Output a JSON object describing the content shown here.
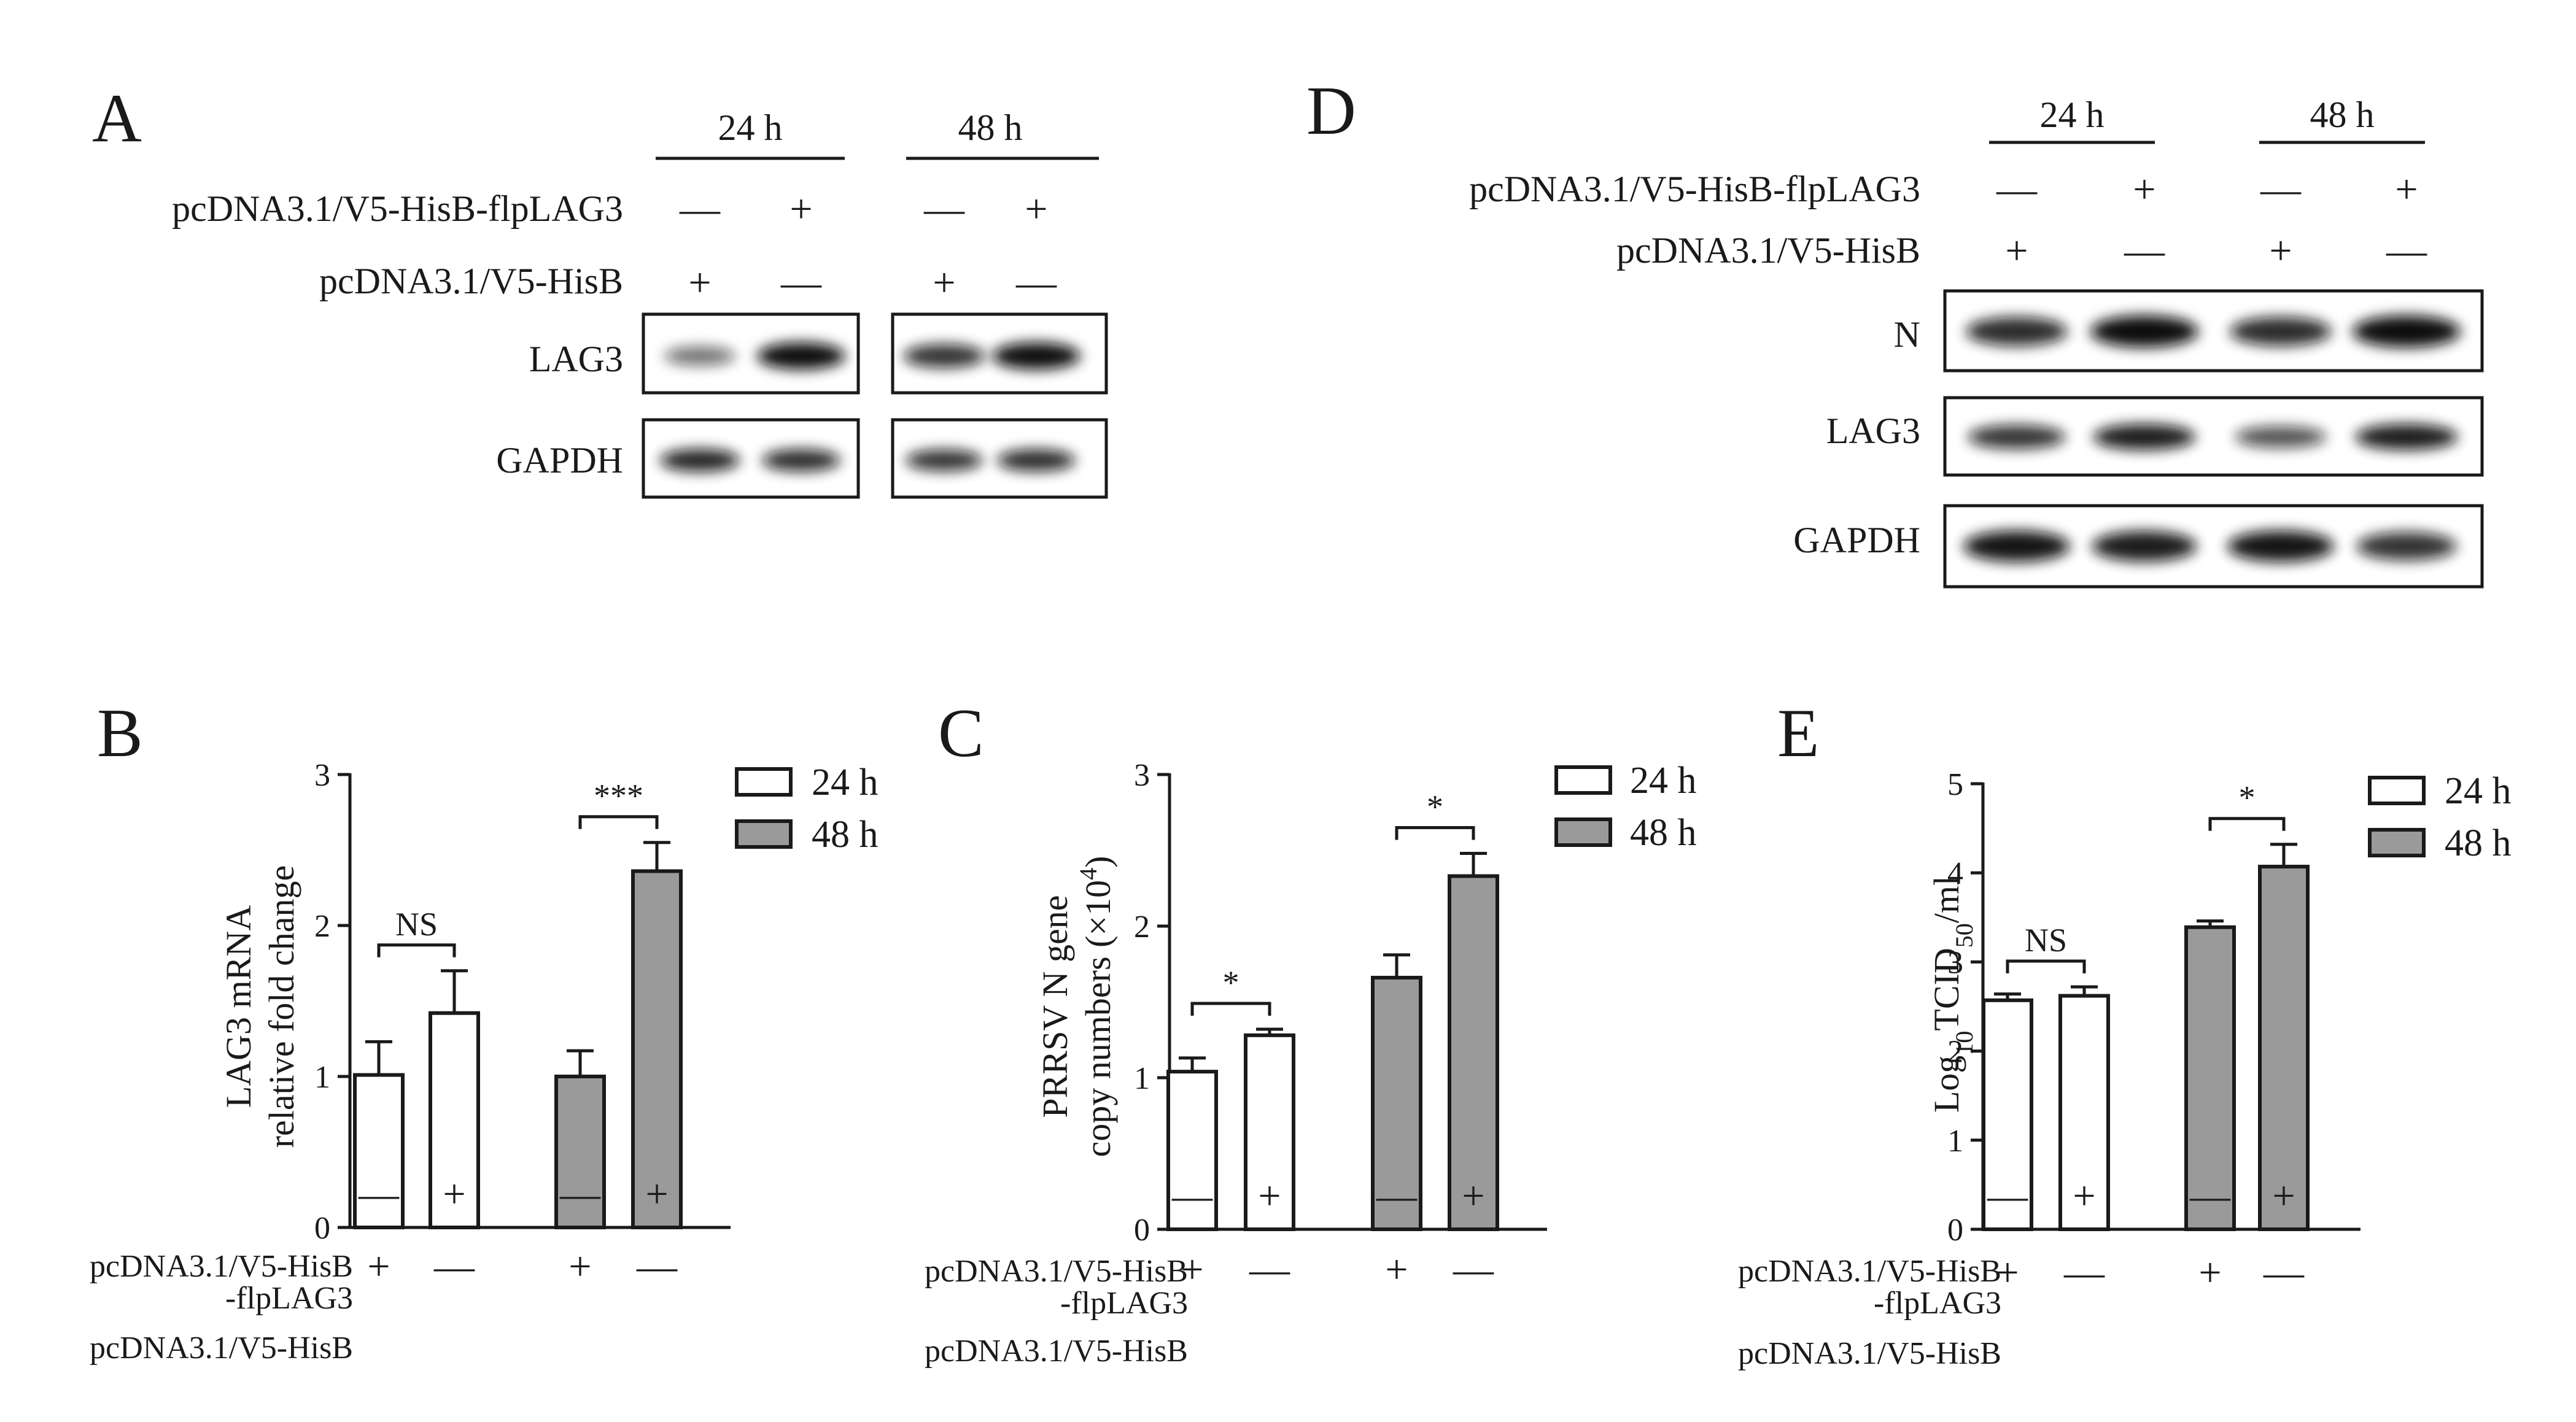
{
  "colors": {
    "bar_24h": "#ffffff",
    "bar_48h": "#9a9a9a",
    "ink": "#1a1a1a",
    "band": "#111111"
  },
  "panel_A": {
    "letter": "A",
    "timepoints": [
      "24 h",
      "48 h"
    ],
    "rows": [
      {
        "label": "pcDNA3.1/V5-HisB-flpLAG3",
        "signs": [
          "—",
          "+",
          "—",
          "+"
        ]
      },
      {
        "label": "pcDNA3.1/V5-HisB",
        "signs": [
          "+",
          "—",
          "+",
          "—"
        ]
      }
    ],
    "blots": [
      {
        "label": "LAG3",
        "intensity": [
          0.35,
          1.0,
          0.75,
          1.0
        ]
      },
      {
        "label": "GAPDH",
        "intensity": [
          0.85,
          0.8,
          0.75,
          0.8
        ]
      }
    ]
  },
  "panel_D": {
    "letter": "D",
    "timepoints": [
      "24 h",
      "48 h"
    ],
    "rows": [
      {
        "label": "pcDNA3.1/V5-HisB-flpLAG3",
        "signs": [
          "—",
          "+",
          "—",
          "+"
        ]
      },
      {
        "label": "pcDNA3.1/V5-HisB",
        "signs": [
          "+",
          "—",
          "+",
          "—"
        ]
      }
    ],
    "blots": [
      {
        "label": "N",
        "intensity": [
          0.8,
          1.0,
          0.8,
          1.0
        ]
      },
      {
        "label": "LAG3",
        "intensity": [
          0.75,
          0.9,
          0.55,
          0.9
        ]
      },
      {
        "label": "GAPDH",
        "intensity": [
          0.95,
          0.9,
          0.95,
          0.75
        ]
      }
    ]
  },
  "chart_data": [
    {
      "panel": "B",
      "type": "bar",
      "ylabel_lines": [
        "LAG3 mRNA",
        "relative fold change"
      ],
      "ylim": [
        0,
        3
      ],
      "yticks": [
        "0",
        "1",
        "2",
        "3"
      ],
      "legend": [
        "24 h",
        "48 h"
      ],
      "groups": [
        "24 h",
        "48 h"
      ],
      "bars": [
        {
          "group": "24 h",
          "value": 1.01,
          "error": 0.22
        },
        {
          "group": "24 h",
          "value": 1.42,
          "error": 0.28
        },
        {
          "group": "48 h",
          "value": 1.0,
          "error": 0.17
        },
        {
          "group": "48 h",
          "value": 2.36,
          "error": 0.19
        }
      ],
      "significance": [
        {
          "label": "NS",
          "bars": [
            0,
            1
          ]
        },
        {
          "label": "***",
          "bars": [
            2,
            3
          ]
        }
      ],
      "conditions": [
        {
          "label_lines": [
            "pcDNA3.1/V5-HisB",
            "-flpLAG3"
          ],
          "signs": [
            "—",
            "+",
            "—",
            "+"
          ]
        },
        {
          "label_lines": [
            "pcDNA3.1/V5-HisB"
          ],
          "signs": [
            "+",
            "—",
            "+",
            "—"
          ]
        }
      ]
    },
    {
      "panel": "C",
      "type": "bar",
      "ylabel_lines": [
        "PRRSV N gene",
        "copy numbers (×10",
        "4",
        ")"
      ],
      "ylim": [
        0,
        3
      ],
      "yticks": [
        "0",
        "1",
        "2",
        "3"
      ],
      "legend": [
        "24 h",
        "48 h"
      ],
      "groups": [
        "24 h",
        "48 h"
      ],
      "bars": [
        {
          "group": "24 h",
          "value": 1.04,
          "error": 0.09
        },
        {
          "group": "24 h",
          "value": 1.28,
          "error": 0.04
        },
        {
          "group": "48 h",
          "value": 1.66,
          "error": 0.15
        },
        {
          "group": "48 h",
          "value": 2.33,
          "error": 0.15
        }
      ],
      "significance": [
        {
          "label": "*",
          "bars": [
            0,
            1
          ]
        },
        {
          "label": "*",
          "bars": [
            2,
            3
          ]
        }
      ],
      "conditions": [
        {
          "label_lines": [
            "pcDNA3.1/V5-HisB",
            "-flpLAG3"
          ],
          "signs": [
            "—",
            "+",
            "—",
            "+"
          ]
        },
        {
          "label_lines": [
            "pcDNA3.1/V5-HisB"
          ],
          "signs": [
            "+",
            "—",
            "+",
            "—"
          ]
        }
      ]
    },
    {
      "panel": "E",
      "type": "bar",
      "ylabel_lines": [
        "Log",
        "10",
        "TCID",
        "50",
        "/ml"
      ],
      "ylim": [
        0,
        5
      ],
      "yticks": [
        "0",
        "1",
        "2",
        "3",
        "4",
        "5"
      ],
      "legend": [
        "24 h",
        "48 h"
      ],
      "groups": [
        "24 h",
        "48 h"
      ],
      "bars": [
        {
          "group": "24 h",
          "value": 2.57,
          "error": 0.07
        },
        {
          "group": "24 h",
          "value": 2.62,
          "error": 0.1
        },
        {
          "group": "48 h",
          "value": 3.39,
          "error": 0.07
        },
        {
          "group": "48 h",
          "value": 4.07,
          "error": 0.25
        }
      ],
      "significance": [
        {
          "label": "NS",
          "bars": [
            0,
            1
          ]
        },
        {
          "label": "*",
          "bars": [
            2,
            3
          ]
        }
      ],
      "conditions": [
        {
          "label_lines": [
            "pcDNA3.1/V5-HisB",
            "-flpLAG3"
          ],
          "signs": [
            "—",
            "+",
            "—",
            "+"
          ]
        },
        {
          "label_lines": [
            "pcDNA3.1/V5-HisB"
          ],
          "signs": [
            "+",
            "—",
            "+",
            "—"
          ]
        }
      ]
    }
  ]
}
